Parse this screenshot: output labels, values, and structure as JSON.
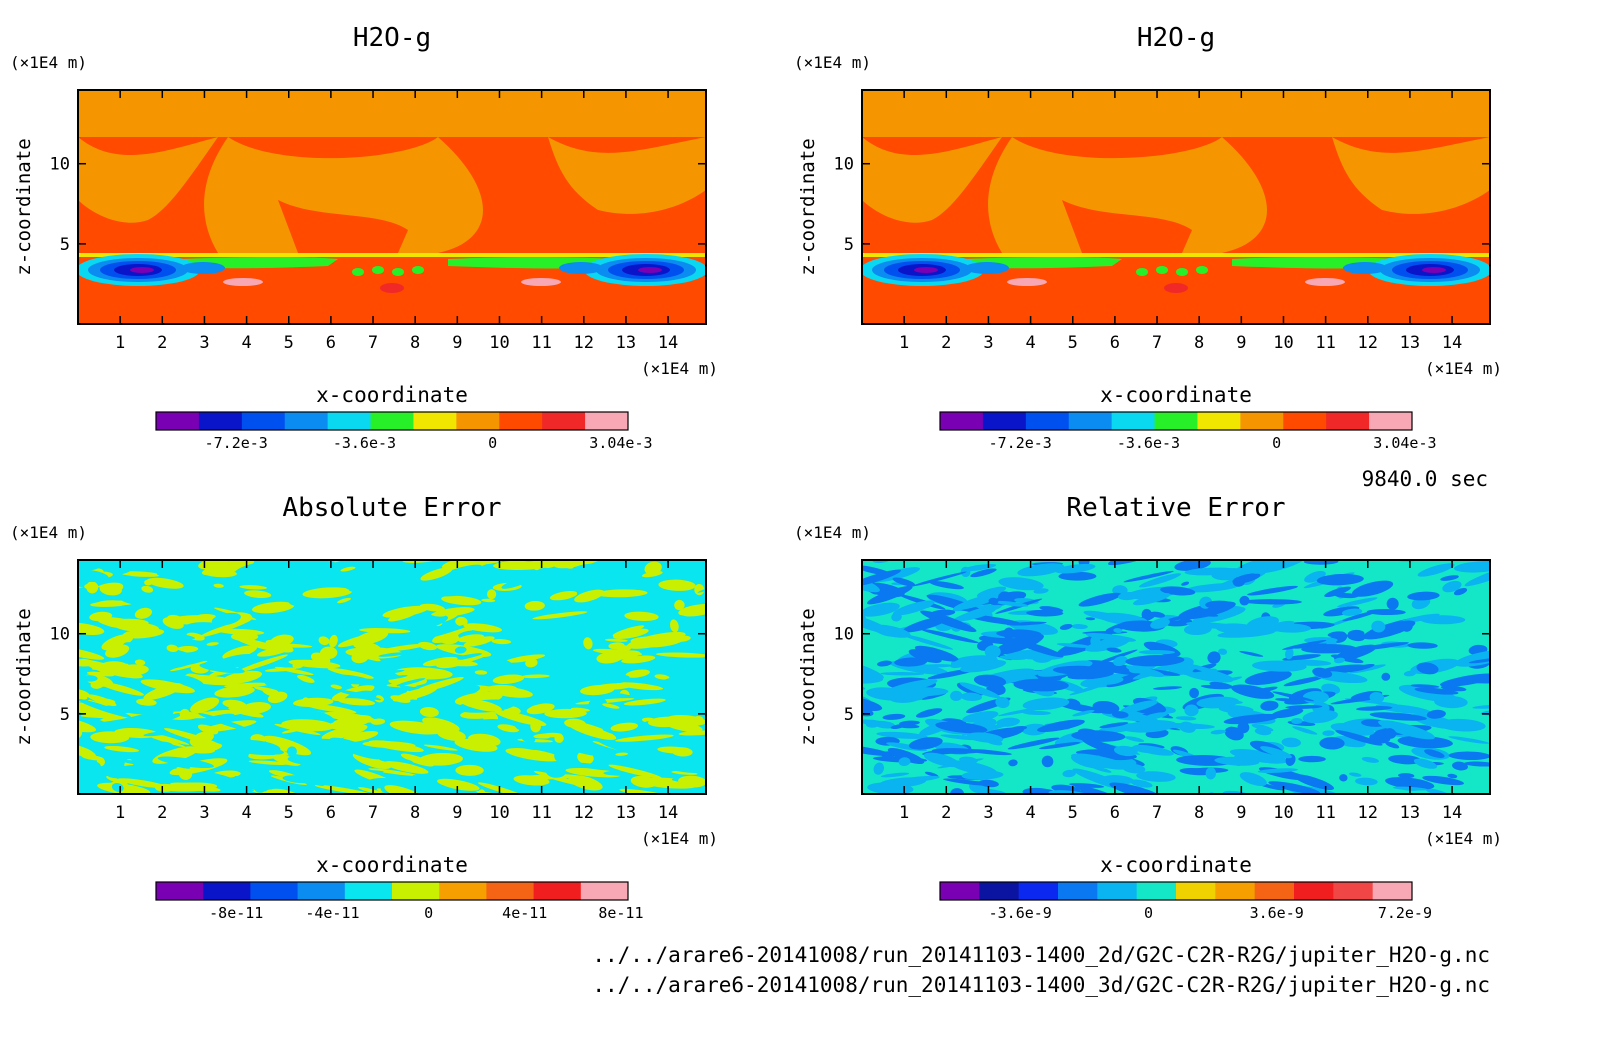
{
  "colors": {
    "h2o": [
      "#7a00b4",
      "#0a14c8",
      "#0050f0",
      "#0a8cf0",
      "#0ad8f0",
      "#28f028",
      "#f0e600",
      "#f59600",
      "#ff4a00",
      "#f02828",
      "#f8a8b4"
    ],
    "abs": [
      "#7a00b4",
      "#0a14c8",
      "#0050f0",
      "#0a8cf0",
      "#0ae6f0",
      "#c8f000",
      "#f5a000",
      "#f56414",
      "#f01e1e",
      "#f8a8b4"
    ],
    "rel": [
      "#7a00b4",
      "#0a14a0",
      "#0a28f0",
      "#0a78f0",
      "#0ab4f0",
      "#14e6c8",
      "#f0d200",
      "#f5a000",
      "#f56414",
      "#f01e1e",
      "#f04646",
      "#f8a8b4"
    ]
  },
  "chart_data": [
    {
      "type": "heatmap",
      "title": "H2O-g",
      "xlabel": "x-coordinate",
      "ylabel": "z-coordinate",
      "x_unit": "(×1E4 m)",
      "y_unit": "(×1E4 m)",
      "xlim": [
        0,
        14.9
      ],
      "ylim": [
        0,
        14.6
      ],
      "x_ticks": [
        1,
        2,
        3,
        4,
        5,
        6,
        7,
        8,
        9,
        10,
        11,
        12,
        13,
        14
      ],
      "y_ticks": [
        5,
        10
      ],
      "colorbar_labels": [
        "-7.2e-3",
        "-3.6e-3",
        "0",
        "3.04e-3"
      ],
      "field": "h2o"
    },
    {
      "type": "heatmap",
      "title": "H2O-g",
      "xlabel": "x-coordinate",
      "ylabel": "z-coordinate",
      "x_unit": "(×1E4 m)",
      "y_unit": "(×1E4 m)",
      "xlim": [
        0,
        14.9
      ],
      "ylim": [
        0,
        14.6
      ],
      "x_ticks": [
        1,
        2,
        3,
        4,
        5,
        6,
        7,
        8,
        9,
        10,
        11,
        12,
        13,
        14
      ],
      "y_ticks": [
        5,
        10
      ],
      "colorbar_labels": [
        "-7.2e-3",
        "-3.6e-3",
        "0",
        "3.04e-3"
      ],
      "field": "h2o"
    },
    {
      "type": "heatmap",
      "title": "Absolute Error",
      "xlabel": "x-coordinate",
      "ylabel": "z-coordinate",
      "x_unit": "(×1E4 m)",
      "y_unit": "(×1E4 m)",
      "xlim": [
        0,
        14.9
      ],
      "ylim": [
        0,
        14.6
      ],
      "x_ticks": [
        1,
        2,
        3,
        4,
        5,
        6,
        7,
        8,
        9,
        10,
        11,
        12,
        13,
        14
      ],
      "y_ticks": [
        5,
        10
      ],
      "colorbar_labels": [
        "-8e-11",
        "-4e-11",
        "0",
        "4e-11",
        "8e-11"
      ],
      "field": "abs"
    },
    {
      "type": "heatmap",
      "title": "Relative Error",
      "xlabel": "x-coordinate",
      "ylabel": "z-coordinate",
      "x_unit": "(×1E4 m)",
      "y_unit": "(×1E4 m)",
      "xlim": [
        0,
        14.9
      ],
      "ylim": [
        0,
        14.6
      ],
      "x_ticks": [
        1,
        2,
        3,
        4,
        5,
        6,
        7,
        8,
        9,
        10,
        11,
        12,
        13,
        14
      ],
      "y_ticks": [
        5,
        10
      ],
      "colorbar_labels": [
        "-3.6e-9",
        "0",
        "3.6e-9",
        "7.2e-9"
      ],
      "field": "rel"
    }
  ],
  "time_label": "9840.0 sec",
  "files": [
    "../../arare6-20141008/run_20141103-1400_2d/G2C-C2R-R2G/jupiter_H2O-g.nc",
    "../../arare6-20141008/run_20141103-1400_3d/G2C-C2R-R2G/jupiter_H2O-g.nc"
  ]
}
